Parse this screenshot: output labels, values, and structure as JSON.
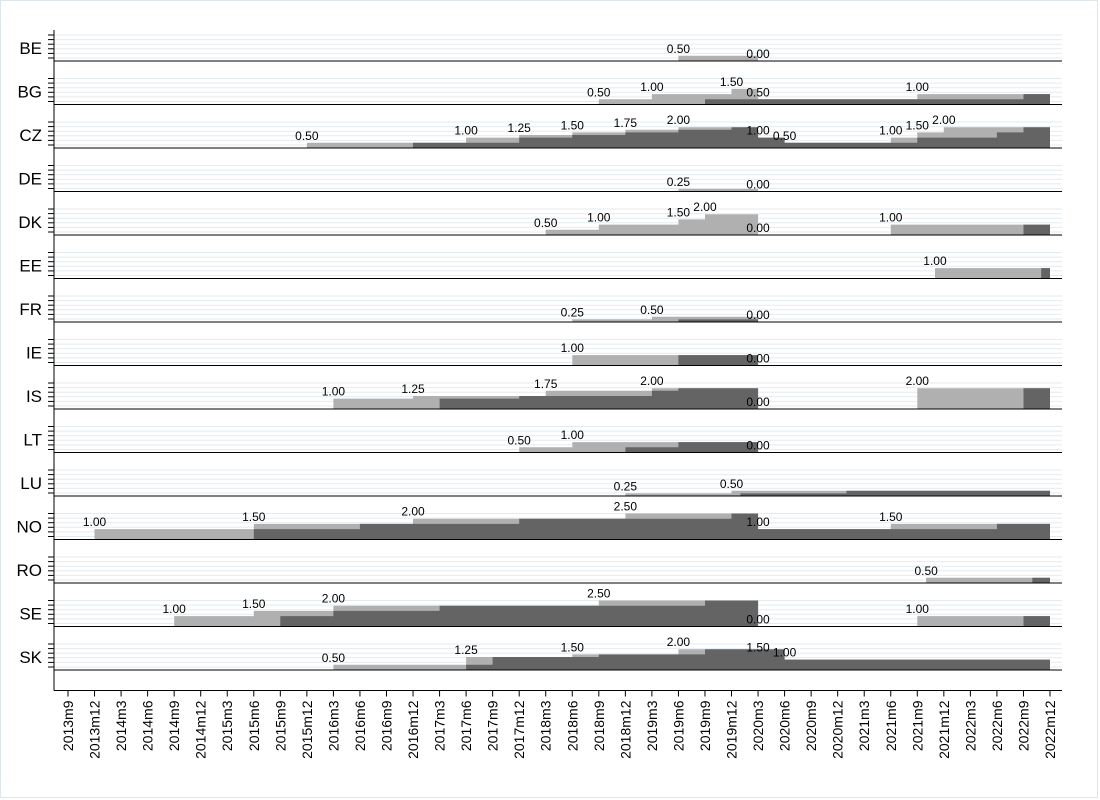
{
  "chart_data": {
    "type": "area",
    "colors": {
      "announced": "#b0b0b0",
      "in_effect": "#646464",
      "grid": "#e4ebef",
      "axis": "#000000"
    },
    "x_ticks": [
      "2013m9",
      "2013m12",
      "2014m3",
      "2014m6",
      "2014m9",
      "2014m12",
      "2015m3",
      "2015m6",
      "2015m9",
      "2015m12",
      "2016m3",
      "2016m6",
      "2016m9",
      "2016m12",
      "2017m3",
      "2017m6",
      "2017m9",
      "2017m12",
      "2018m3",
      "2018m6",
      "2018m9",
      "2018m12",
      "2019m3",
      "2019m6",
      "2019m9",
      "2019m12",
      "2020m3",
      "2020m6",
      "2020m9",
      "2020m12",
      "2021m3",
      "2021m6",
      "2021m9",
      "2021m12",
      "2022m3",
      "2022m6",
      "2022m9",
      "2022m12"
    ],
    "panels": [
      {
        "country": "BE",
        "announced": [
          [
            "2019m6",
            0.5
          ],
          [
            "2020m3",
            0
          ]
        ],
        "in_effect": [],
        "labels": [
          {
            "x": "2019m6",
            "text": "0.50"
          },
          {
            "x": "2020m3",
            "text": "0.00"
          }
        ]
      },
      {
        "country": "BG",
        "announced": [
          [
            "2018m9",
            0.5
          ],
          [
            "2019m3",
            1.0
          ],
          [
            "2019m12",
            1.5
          ],
          [
            "2020m3",
            0.5
          ],
          [
            "2021m9",
            1.0
          ],
          [
            "2022m12",
            1.0
          ]
        ],
        "in_effect": [
          [
            "2019m9",
            0.5
          ],
          [
            "2020m3",
            1.0
          ],
          [
            "2020m3",
            0.5
          ],
          [
            "2022m9",
            1.0
          ],
          [
            "2022m12",
            1.0
          ]
        ],
        "labels": [
          {
            "x": "2018m9",
            "text": "0.50"
          },
          {
            "x": "2019m3",
            "text": "1.00"
          },
          {
            "x": "2019m12",
            "text": "1.50"
          },
          {
            "x": "2020m3",
            "text": "0.50"
          },
          {
            "x": "2021m9",
            "text": "1.00"
          }
        ]
      },
      {
        "country": "CZ",
        "announced": [
          [
            "2015m12",
            0.5
          ],
          [
            "2017m6",
            1.0
          ],
          [
            "2017m12",
            1.25
          ],
          [
            "2018m6",
            1.5
          ],
          [
            "2018m12",
            1.75
          ],
          [
            "2019m6",
            2.0
          ],
          [
            "2020m3",
            1.0
          ],
          [
            "2020m6",
            0.5
          ],
          [
            "2021m6",
            1.0
          ],
          [
            "2021m9",
            1.5
          ],
          [
            "2021m12",
            2.0
          ],
          [
            "2022m12",
            2.0
          ]
        ],
        "in_effect": [
          [
            "2016m12",
            0.5
          ],
          [
            "2017m12",
            1.0
          ],
          [
            "2018m6",
            1.25
          ],
          [
            "2018m12",
            1.5
          ],
          [
            "2019m6",
            1.75
          ],
          [
            "2019m12",
            2.0
          ],
          [
            "2020m3",
            1.0
          ],
          [
            "2020m6",
            0.5
          ],
          [
            "2021m9",
            1.0
          ],
          [
            "2022m6",
            1.5
          ],
          [
            "2022m9",
            2.0
          ],
          [
            "2022m12",
            2.0
          ]
        ],
        "labels": [
          {
            "x": "2015m12",
            "text": "0.50"
          },
          {
            "x": "2017m6",
            "text": "1.00"
          },
          {
            "x": "2017m12",
            "text": "1.25"
          },
          {
            "x": "2018m6",
            "text": "1.50"
          },
          {
            "x": "2018m12",
            "text": "1.75"
          },
          {
            "x": "2019m6",
            "text": "2.00"
          },
          {
            "x": "2020m3",
            "text": "1.00"
          },
          {
            "x": "2020m6",
            "text": "0.50"
          },
          {
            "x": "2021m6",
            "text": "1.00"
          },
          {
            "x": "2021m9",
            "text": "1.50"
          },
          {
            "x": "2021m12",
            "text": "2.00"
          }
        ]
      },
      {
        "country": "DE",
        "announced": [
          [
            "2019m6",
            0.25
          ],
          [
            "2020m3",
            0
          ]
        ],
        "in_effect": [],
        "labels": [
          {
            "x": "2019m6",
            "text": "0.25"
          },
          {
            "x": "2020m3",
            "text": "0.00"
          }
        ]
      },
      {
        "country": "DK",
        "announced": [
          [
            "2018m3",
            0.5
          ],
          [
            "2018m9",
            1.0
          ],
          [
            "2019m6",
            1.5
          ],
          [
            "2019m9",
            2.0
          ],
          [
            "2020m3",
            0
          ],
          [
            "2021m6",
            1.0
          ],
          [
            "2022m12",
            1.0
          ]
        ],
        "in_effect": [
          [
            "2022m9",
            1.0
          ],
          [
            "2022m12",
            1.0
          ]
        ],
        "labels": [
          {
            "x": "2018m3",
            "text": "0.50"
          },
          {
            "x": "2018m9",
            "text": "1.00"
          },
          {
            "x": "2019m6",
            "text": "1.50"
          },
          {
            "x": "2019m9",
            "text": "2.00"
          },
          {
            "x": "2020m3",
            "text": "0.00"
          },
          {
            "x": "2021m6",
            "text": "1.00"
          }
        ]
      },
      {
        "country": "EE",
        "announced": [
          [
            "2021m11",
            1.0
          ],
          [
            "2022m12",
            1.0
          ]
        ],
        "in_effect": [
          [
            "2022m11",
            1.0
          ],
          [
            "2022m12",
            1.0
          ]
        ],
        "labels": [
          {
            "x": "2021m11",
            "text": "1.00"
          }
        ]
      },
      {
        "country": "FR",
        "announced": [
          [
            "2018m6",
            0.25
          ],
          [
            "2019m3",
            0.5
          ],
          [
            "2020m3",
            0
          ]
        ],
        "in_effect": [
          [
            "2019m6",
            0.25
          ],
          [
            "2020m3",
            0
          ]
        ],
        "labels": [
          {
            "x": "2018m6",
            "text": "0.25"
          },
          {
            "x": "2019m3",
            "text": "0.50"
          },
          {
            "x": "2020m3",
            "text": "0.00"
          }
        ]
      },
      {
        "country": "IE",
        "announced": [
          [
            "2018m6",
            1.0
          ],
          [
            "2020m3",
            0
          ]
        ],
        "in_effect": [
          [
            "2019m6",
            1.0
          ],
          [
            "2020m3",
            0
          ]
        ],
        "labels": [
          {
            "x": "2018m6",
            "text": "1.00"
          },
          {
            "x": "2020m3",
            "text": "0.00"
          }
        ]
      },
      {
        "country": "IS",
        "announced": [
          [
            "2016m3",
            1.0
          ],
          [
            "2016m12",
            1.25
          ],
          [
            "2018m3",
            1.75
          ],
          [
            "2019m3",
            2.0
          ],
          [
            "2020m3",
            0
          ],
          [
            "2021m9",
            2.0
          ],
          [
            "2022m12",
            2.0
          ]
        ],
        "in_effect": [
          [
            "2017m3",
            1.0
          ],
          [
            "2017m12",
            1.25
          ],
          [
            "2019m3",
            1.75
          ],
          [
            "2019m6",
            2.0
          ],
          [
            "2020m3",
            0
          ],
          [
            "2022m9",
            2.0
          ],
          [
            "2022m12",
            2.0
          ]
        ],
        "labels": [
          {
            "x": "2016m3",
            "text": "1.00"
          },
          {
            "x": "2016m12",
            "text": "1.25"
          },
          {
            "x": "2018m3",
            "text": "1.75"
          },
          {
            "x": "2019m3",
            "text": "2.00"
          },
          {
            "x": "2020m3",
            "text": "0.00"
          },
          {
            "x": "2021m9",
            "text": "2.00"
          }
        ]
      },
      {
        "country": "LT",
        "announced": [
          [
            "2017m12",
            0.5
          ],
          [
            "2018m6",
            1.0
          ],
          [
            "2020m3",
            0
          ]
        ],
        "in_effect": [
          [
            "2018m12",
            0.5
          ],
          [
            "2019m6",
            1.0
          ],
          [
            "2020m3",
            0
          ]
        ],
        "labels": [
          {
            "x": "2017m12",
            "text": "0.50"
          },
          {
            "x": "2018m6",
            "text": "1.00"
          },
          {
            "x": "2020m3",
            "text": "0.00"
          }
        ]
      },
      {
        "country": "LU",
        "announced": [
          [
            "2018m12",
            0.25
          ],
          [
            "2019m12",
            0.5
          ],
          [
            "2022m12",
            0.5
          ]
        ],
        "in_effect": [
          [
            "2020m1",
            0.25
          ],
          [
            "2021m1",
            0.5
          ],
          [
            "2022m12",
            0.5
          ]
        ],
        "labels": [
          {
            "x": "2018m12",
            "text": "0.25"
          },
          {
            "x": "2019m12",
            "text": "0.50"
          }
        ]
      },
      {
        "country": "NO",
        "announced": [
          [
            "2013m12",
            1.0
          ],
          [
            "2015m6",
            1.5
          ],
          [
            "2016m12",
            2.0
          ],
          [
            "2018m12",
            2.5
          ],
          [
            "2020m3",
            1.0
          ],
          [
            "2021m6",
            1.5
          ],
          [
            "2022m12",
            1.5
          ]
        ],
        "in_effect": [
          [
            "2015m6",
            1.0
          ],
          [
            "2016m6",
            1.5
          ],
          [
            "2017m12",
            2.0
          ],
          [
            "2019m12",
            2.5
          ],
          [
            "2020m3",
            1.0
          ],
          [
            "2022m6",
            1.5
          ],
          [
            "2022m12",
            1.5
          ]
        ],
        "labels": [
          {
            "x": "2013m12",
            "text": "1.00"
          },
          {
            "x": "2015m6",
            "text": "1.50"
          },
          {
            "x": "2016m12",
            "text": "2.00"
          },
          {
            "x": "2018m12",
            "text": "2.50"
          },
          {
            "x": "2020m3",
            "text": "1.00"
          },
          {
            "x": "2021m6",
            "text": "1.50"
          }
        ]
      },
      {
        "country": "RO",
        "announced": [
          [
            "2021m10",
            0.5
          ],
          [
            "2022m12",
            0.5
          ]
        ],
        "in_effect": [
          [
            "2022m10",
            0.5
          ],
          [
            "2022m12",
            0.5
          ]
        ],
        "labels": [
          {
            "x": "2021m10",
            "text": "0.50"
          }
        ]
      },
      {
        "country": "SE",
        "announced": [
          [
            "2014m9",
            1.0
          ],
          [
            "2015m6",
            1.5
          ],
          [
            "2016m3",
            2.0
          ],
          [
            "2018m9",
            2.5
          ],
          [
            "2020m3",
            0
          ],
          [
            "2021m9",
            1.0
          ],
          [
            "2022m12",
            1.0
          ]
        ],
        "in_effect": [
          [
            "2015m9",
            1.0
          ],
          [
            "2016m3",
            1.5
          ],
          [
            "2017m3",
            2.0
          ],
          [
            "2019m9",
            2.5
          ],
          [
            "2020m3",
            0
          ],
          [
            "2022m9",
            1.0
          ],
          [
            "2022m12",
            1.0
          ]
        ],
        "labels": [
          {
            "x": "2014m9",
            "text": "1.00"
          },
          {
            "x": "2015m6",
            "text": "1.50"
          },
          {
            "x": "2016m3",
            "text": "2.00"
          },
          {
            "x": "2018m9",
            "text": "2.50"
          },
          {
            "x": "2020m3",
            "text": "0.00"
          },
          {
            "x": "2021m9",
            "text": "1.00"
          }
        ]
      },
      {
        "country": "SK",
        "announced": [
          [
            "2016m3",
            0.5
          ],
          [
            "2017m6",
            1.25
          ],
          [
            "2018m6",
            1.5
          ],
          [
            "2019m6",
            2.0
          ],
          [
            "2020m3",
            1.5
          ],
          [
            "2020m6",
            1.0
          ],
          [
            "2022m12",
            1.0
          ]
        ],
        "in_effect": [
          [
            "2017m6",
            0.5
          ],
          [
            "2017m9",
            1.25
          ],
          [
            "2018m9",
            1.5
          ],
          [
            "2019m9",
            2.0
          ],
          [
            "2020m6",
            1.5
          ],
          [
            "2020m6",
            1.0
          ],
          [
            "2022m12",
            1.0
          ]
        ],
        "labels": [
          {
            "x": "2016m3",
            "text": "0.50"
          },
          {
            "x": "2017m6",
            "text": "1.25"
          },
          {
            "x": "2018m6",
            "text": "1.50"
          },
          {
            "x": "2019m6",
            "text": "2.00"
          },
          {
            "x": "2020m3",
            "text": "1.50"
          },
          {
            "x": "2020m6",
            "text": "1.00"
          }
        ]
      }
    ]
  }
}
